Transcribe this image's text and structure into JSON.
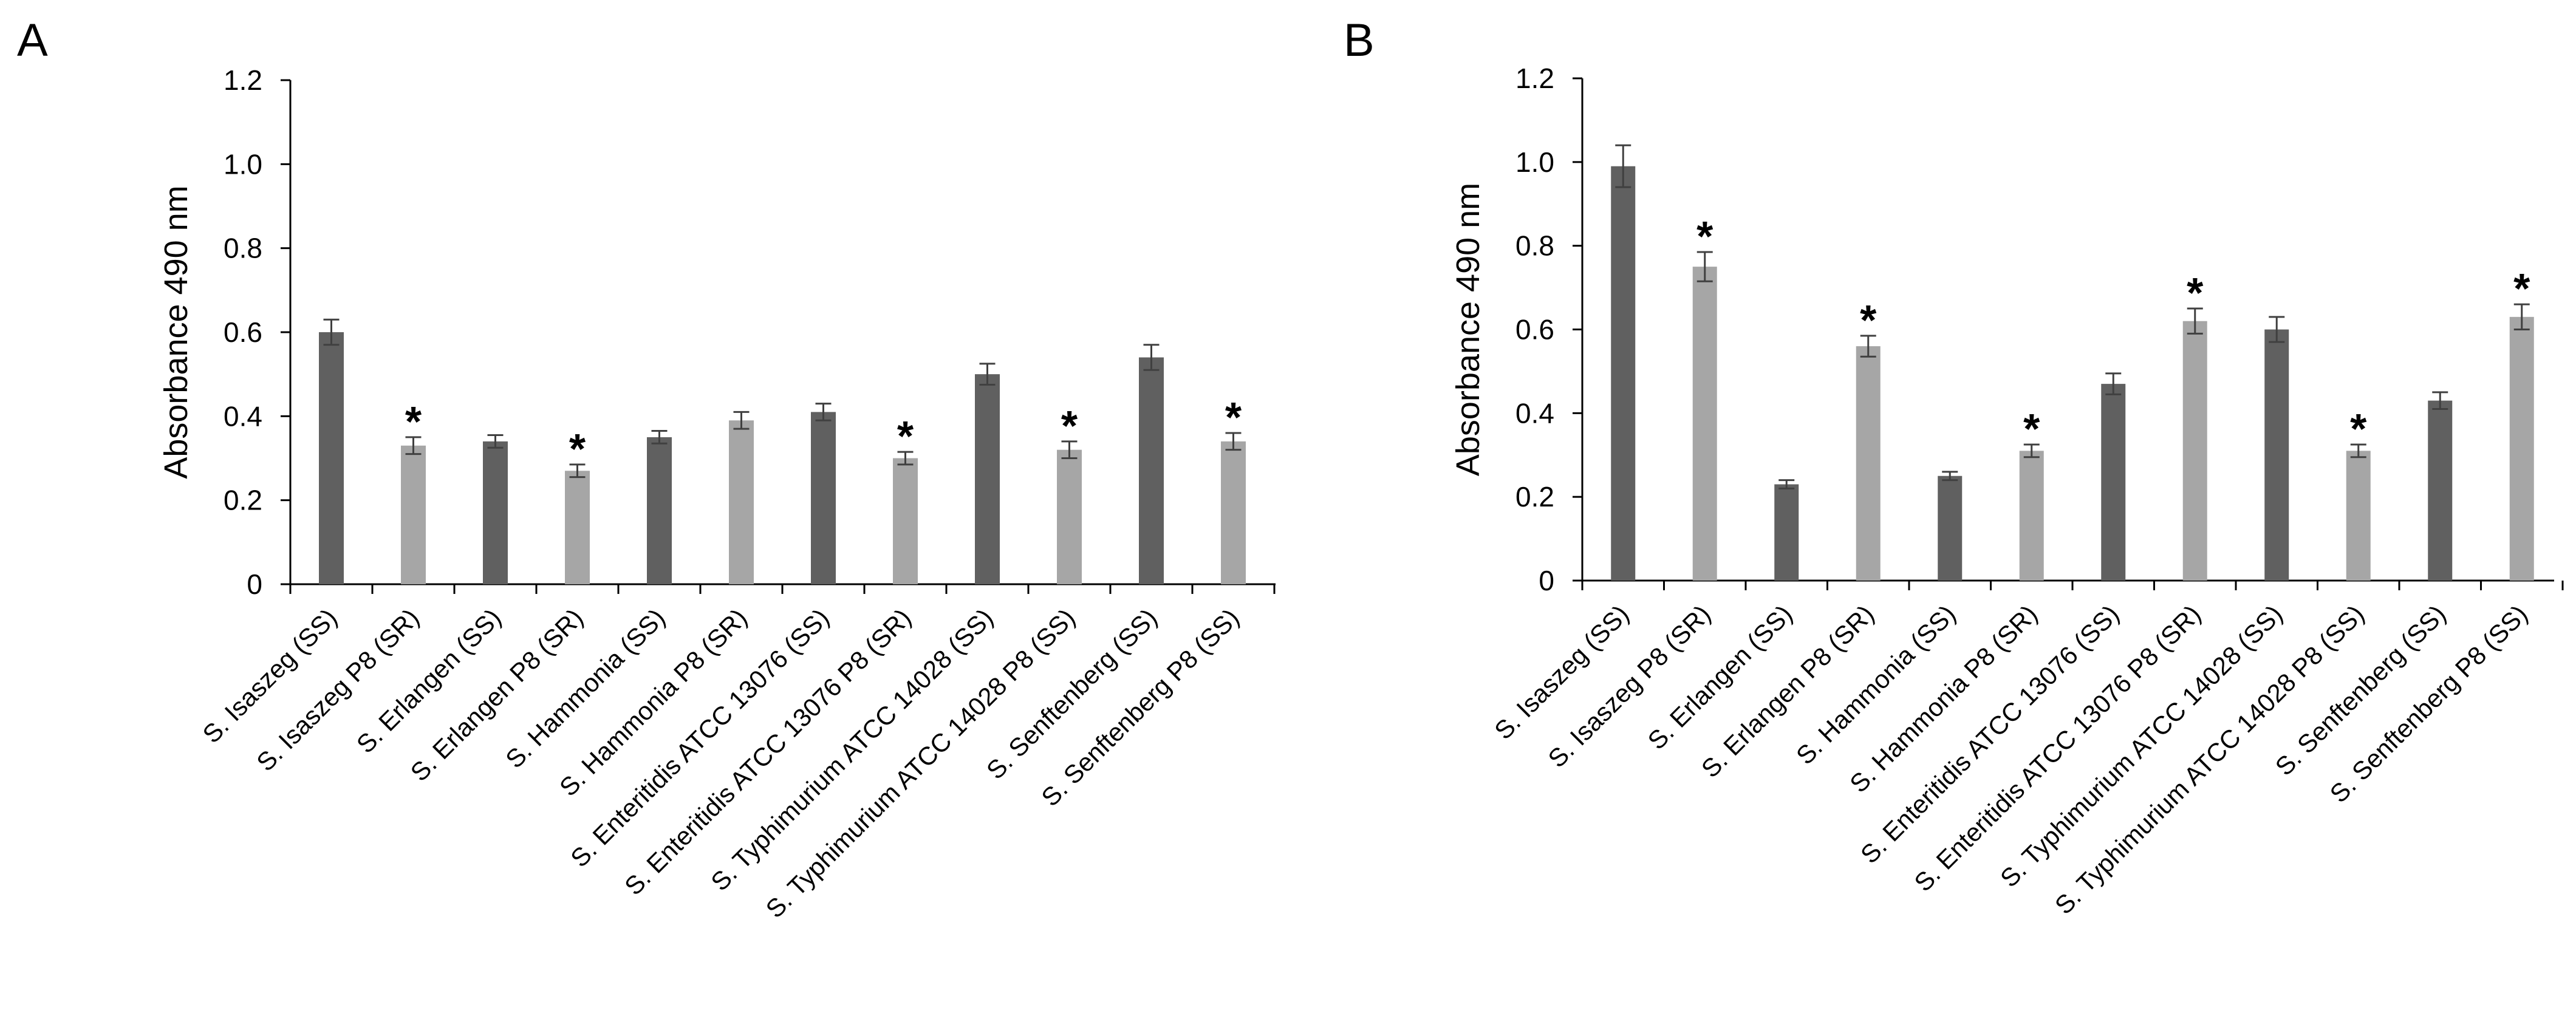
{
  "chart_data": [
    {
      "type": "bar",
      "panel_label": "A",
      "ylabel": "Absorbance 490 nm",
      "xlabel": "",
      "ylim": [
        0,
        1.2
      ],
      "yticks": [
        "0",
        "0.2",
        "0.4",
        "0.6",
        "0.8",
        "1.0",
        "1.2"
      ],
      "categories": [
        "S. Isaszeg (SS)",
        "S. Isaszeg P8 (SR)",
        "S. Erlangen (SS)",
        "S. Erlangen P8 (SR)",
        "S. Hammonia (SS)",
        "S. Hammonia P8 (SR)",
        "S. Enteritidis ATCC 13076 (SS)",
        "S. Enteritidis ATCC 13076 P8 (SR)",
        "S. Typhimurium ATCC 14028 (SS)",
        "S. Typhimurium ATCC 14028 P8 (SS)",
        "S. Senftenberg (SS)",
        "S. Senftenberg P8 (SS)"
      ],
      "values": [
        0.6,
        0.33,
        0.34,
        0.27,
        0.35,
        0.39,
        0.41,
        0.3,
        0.5,
        0.32,
        0.54,
        0.34
      ],
      "errors": [
        0.03,
        0.02,
        0.015,
        0.015,
        0.015,
        0.02,
        0.02,
        0.015,
        0.025,
        0.02,
        0.03,
        0.02
      ],
      "bar_colors": [
        "#606060",
        "#a6a6a6",
        "#606060",
        "#a6a6a6",
        "#606060",
        "#a6a6a6",
        "#606060",
        "#a6a6a6",
        "#606060",
        "#a6a6a6",
        "#606060",
        "#a6a6a6"
      ],
      "significance_marker": "*",
      "significant": [
        false,
        true,
        false,
        true,
        false,
        false,
        false,
        true,
        false,
        true,
        false,
        true
      ]
    },
    {
      "type": "bar",
      "panel_label": "B",
      "ylabel": "Absorbance 490 nm",
      "xlabel": "",
      "ylim": [
        0,
        1.2
      ],
      "yticks": [
        "0",
        "0.2",
        "0.4",
        "0.6",
        "0.8",
        "1.0",
        "1.2"
      ],
      "categories": [
        "S. Isaszeg (SS)",
        "S. Isaszeg P8 (SR)",
        "S. Erlangen (SS)",
        "S. Erlangen P8 (SR)",
        "S. Hammonia (SS)",
        "S. Hammonia P8 (SR)",
        "S. Enteritidis ATCC 13076 (SS)",
        "S. Enteritidis ATCC 13076 P8 (SR)",
        "S. Typhimurium ATCC 14028 (SS)",
        "S. Typhimurium ATCC 14028 P8 (SS)",
        "S. Senftenberg (SS)",
        "S. Senftenberg P8 (SS)"
      ],
      "values": [
        0.99,
        0.75,
        0.23,
        0.56,
        0.25,
        0.31,
        0.47,
        0.62,
        0.6,
        0.31,
        0.43,
        0.63
      ],
      "errors": [
        0.05,
        0.035,
        0.01,
        0.025,
        0.01,
        0.015,
        0.025,
        0.03,
        0.03,
        0.015,
        0.02,
        0.03
      ],
      "bar_colors": [
        "#606060",
        "#a6a6a6",
        "#606060",
        "#a6a6a6",
        "#606060",
        "#a6a6a6",
        "#606060",
        "#a6a6a6",
        "#606060",
        "#a6a6a6",
        "#606060",
        "#a6a6a6"
      ],
      "significance_marker": "*",
      "significant": [
        false,
        true,
        false,
        true,
        false,
        true,
        false,
        true,
        false,
        true,
        false,
        true
      ]
    }
  ]
}
